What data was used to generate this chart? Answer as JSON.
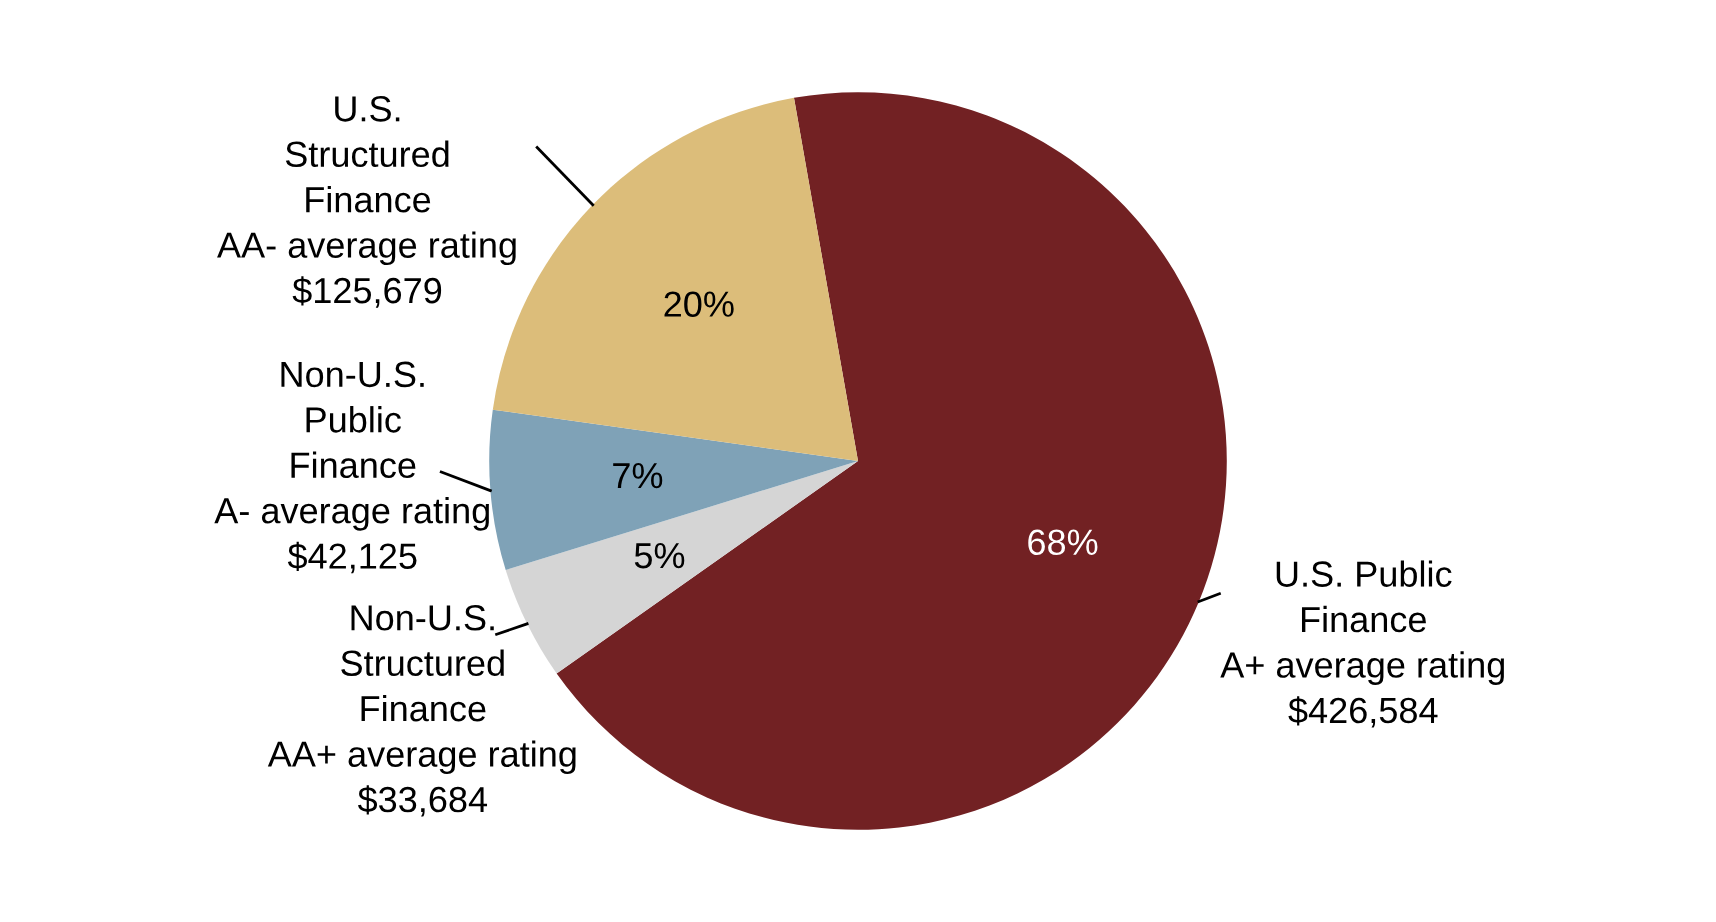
{
  "chart_data": {
    "type": "pie",
    "categories": [
      "U.S. Public\nFinance\nA+ average rating\n$426,584",
      "Non-U.S.\nStructured\nFinance\nAA+ average rating\n$33,684",
      "Non-U.S.\nPublic\nFinance\nA- average rating\n$42,125",
      "U.S.\nStructured\nFinance\nAA- average rating\n$125,679"
    ],
    "values": [
      68,
      5,
      7,
      20
    ],
    "colors": [
      "#722123",
      "#d5d5d5",
      "#7fa2b7",
      "#dcbd7a"
    ],
    "value_labels": [
      "68%",
      "5%",
      "7%",
      "20%"
    ],
    "legend": false
  }
}
